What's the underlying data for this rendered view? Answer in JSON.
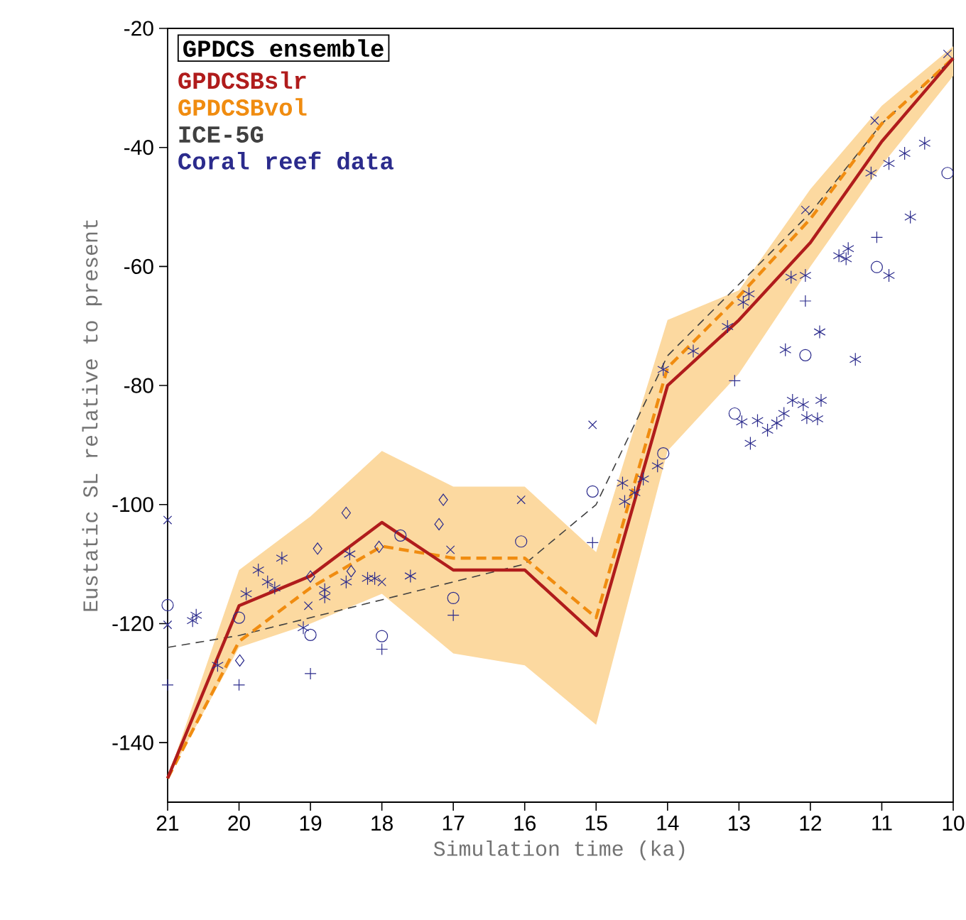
{
  "chart_data": {
    "type": "line",
    "xlabel": "Simulation time (ka)",
    "ylabel": "Eustatic SL relative to present",
    "legend_title": "GPDCS ensemble",
    "legend": "top left",
    "grid": false,
    "xlim": [
      21,
      10
    ],
    "ylim": [
      -150,
      -20
    ],
    "xticks": [
      21,
      20,
      19,
      18,
      17,
      16,
      15,
      14,
      13,
      12,
      11,
      10
    ],
    "yticks": [
      -140,
      -120,
      -100,
      -80,
      -60,
      -40,
      -20
    ],
    "x": [
      21,
      20,
      19,
      18,
      17,
      16,
      15,
      14,
      13,
      12,
      11,
      10
    ],
    "series": [
      {
        "name": "GPDCSBslr",
        "color": "#b01c1c",
        "line_style": "solid",
        "marker": "none",
        "values": [
          -146,
          -117,
          -112,
          -103,
          -111,
          -111,
          -122,
          -80,
          -69,
          -56,
          -39,
          -25
        ],
        "lower": [
          -146,
          -124,
          -120,
          -115,
          -125,
          -127,
          -137,
          -91,
          -78,
          -60,
          -43,
          -28
        ],
        "upper": [
          -146,
          -111,
          -102,
          -91,
          -97,
          -97,
          -108,
          -69,
          -64,
          -47,
          -33,
          -23
        ]
      },
      {
        "name": "GPDCSBvol",
        "color": "#f08c10",
        "line_style": "dashed",
        "marker": "none",
        "values": [
          -146,
          -123,
          -114,
          -107,
          -109,
          -109,
          -119,
          -77,
          -65,
          -52,
          -36,
          -25
        ]
      },
      {
        "name": "ICE-5G",
        "color": "#404040",
        "line_style": "dashed",
        "marker": "none",
        "values": [
          -124,
          -122,
          -119,
          -116,
          -113,
          -110,
          -100,
          -75,
          -63,
          -51,
          -36,
          -25
        ]
      },
      {
        "name": "Coral reef data",
        "type": "scatter",
        "color": "#2b2b8c",
        "x": [
          20.6,
          20.65,
          20.3,
          19.73,
          19.6,
          19.4,
          19.5,
          19.9,
          18.8,
          18.8,
          18.5,
          18.2,
          18.1,
          18.45,
          17.6,
          19.1,
          14.63,
          14.6,
          14.46,
          14.34,
          14.14,
          14.06,
          13.64,
          13.16,
          12.94,
          12.35,
          11.87,
          11.37,
          12.96,
          12.74,
          12.84,
          12.6,
          12.47,
          12.37,
          12.25,
          12.1,
          12.05,
          11.9,
          11.85,
          12.27,
          12.07,
          11.6,
          11.47,
          11.5,
          11.15,
          10.9,
          10.68,
          10.4,
          10.6,
          10.9,
          12.86
        ],
        "values": [
          -118.6,
          -119.5,
          -127,
          -111,
          -113,
          -109,
          -114,
          -115,
          -114.3,
          -115.5,
          -113,
          -112.4,
          -112.4,
          -108.3,
          -112,
          -120.7,
          -96.4,
          -99.5,
          -98,
          -95.7,
          -93.5,
          -77.3,
          -74.2,
          -70.1,
          -66,
          -74,
          -71,
          -75.6,
          -86.1,
          -85.9,
          -89.7,
          -87.5,
          -86.3,
          -84.7,
          -82.5,
          -83.2,
          -85.4,
          -85.6,
          -82.5,
          -61.8,
          -61.5,
          -58.2,
          -57,
          -58.7,
          -44.3,
          -42.7,
          -41,
          -39.3,
          -51.7,
          -61.5,
          -64.6
        ]
      },
      {
        "type": "scatter",
        "color": "#2b2b8c",
        "marker": "cross",
        "x": [
          21,
          21,
          19.03,
          18.0,
          17.04,
          16.05,
          15.05,
          11.1,
          12.07,
          10.08
        ],
        "values": [
          -102.6,
          -120.2,
          -117,
          -113,
          -107.6,
          -99.2,
          -86.6,
          -35.5,
          -50.5,
          -24.3
        ]
      },
      {
        "type": "scatter",
        "color": "#2b2b8c",
        "marker": "plus",
        "x": [
          21,
          20,
          19.0,
          18.0,
          17.0,
          15.05,
          13.06,
          12.07,
          11.07
        ],
        "values": [
          -130.3,
          -130.3,
          -128.4,
          -124.3,
          -118.6,
          -106.4,
          -79.2,
          -65.8,
          -55.1
        ]
      },
      {
        "type": "scatter",
        "color": "#2b2b8c",
        "marker": "circle",
        "x": [
          21,
          20,
          19,
          18,
          17.74,
          17,
          16.05,
          15.05,
          14.06,
          13.06,
          12.07,
          11.07,
          10.08
        ],
        "values": [
          -116.9,
          -119,
          -121.9,
          -122.1,
          -105.2,
          -115.7,
          -106.2,
          -97.8,
          -91.4,
          -84.7,
          -74.9,
          -60.1,
          -44.3
        ]
      },
      {
        "type": "scatter",
        "color": "#2b2b8c",
        "marker": "diamond",
        "x": [
          19.99,
          19.0,
          18.9,
          18.5,
          18.43,
          18.04,
          17.2,
          17.14
        ],
        "values": [
          -126.2,
          -112.1,
          -107.4,
          -101.4,
          -111.2,
          -107.1,
          -103.3,
          -99.2
        ]
      }
    ]
  }
}
